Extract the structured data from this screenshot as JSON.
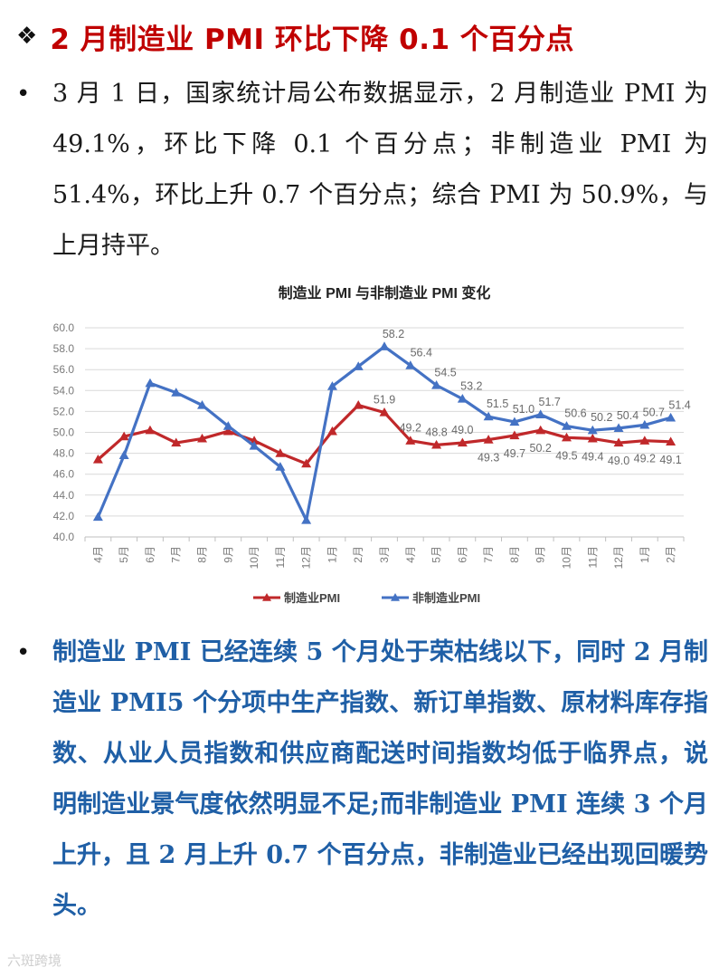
{
  "header": {
    "bullet_symbol": "❖",
    "title": "2 月制造业 PMI 环比下降 0.1 个百分点"
  },
  "paragraph1": {
    "bullet": "•",
    "text": "3 月 1 日，国家统计局公布数据显示，2 月制造业 PMI 为 49.1%，环比下降 0.1 个百分点；非制造业 PMI 为 51.4%，环比上升 0.7 个百分点；综合 PMI 为 50.9%，与上月持平。"
  },
  "paragraph2": {
    "bullet": "•",
    "text": "制造业 PMI 已经连续 5 个月处于荣枯线以下，同时 2 月制造业 PMI5 个分项中生产指数、新订单指数、原材料库存指数、从业人员指数和供应商配送时间指数均低于临界点，说明制造业景气度依然明显不足;而非制造业 PMI 连续 3 个月上升，且 2 月上升 0.7 个百分点，非制造业已经出现回暖势头。"
  },
  "watermark": "六斑跨境",
  "chart_data": {
    "type": "line",
    "title": "制造业 PMI 与非制造业 PMI 变化",
    "categories": [
      "4月",
      "5月",
      "6月",
      "7月",
      "8月",
      "9月",
      "10月",
      "11月",
      "12月",
      "1月",
      "2月",
      "3月",
      "4月",
      "5月",
      "6月",
      "7月",
      "8月",
      "9月",
      "10月",
      "11月",
      "12月",
      "1月",
      "2月"
    ],
    "ylim": [
      40.0,
      60.0
    ],
    "yticks": [
      "40.0",
      "42.0",
      "44.0",
      "46.0",
      "48.0",
      "50.0",
      "52.0",
      "54.0",
      "56.0",
      "58.0",
      "60.0"
    ],
    "grid": true,
    "legend_position": "bottom",
    "series": [
      {
        "name": "制造业PMI",
        "color": "#c0282a",
        "values": [
          47.4,
          49.6,
          50.2,
          49.0,
          49.4,
          50.1,
          49.2,
          48.0,
          47.0,
          50.1,
          52.6,
          51.9,
          49.2,
          48.8,
          49.0,
          49.3,
          49.7,
          50.2,
          49.5,
          49.4,
          49.0,
          49.2,
          49.1
        ],
        "labels": [
          "",
          "",
          "",
          "",
          "",
          "",
          "",
          "",
          "",
          "",
          "",
          "51.9",
          "49.2",
          "48.8",
          "49.0",
          "49.3",
          "49.7",
          "50.2",
          "49.5",
          "49.4",
          "49.0",
          "49.2",
          "49.1"
        ]
      },
      {
        "name": "非制造业PMI",
        "color": "#4472c4",
        "values": [
          41.9,
          47.8,
          54.7,
          53.8,
          52.6,
          50.6,
          48.7,
          46.7,
          41.6,
          54.4,
          56.3,
          58.2,
          56.4,
          54.5,
          53.2,
          51.5,
          51.0,
          51.7,
          50.6,
          50.2,
          50.4,
          50.7,
          51.4
        ],
        "labels": [
          "",
          "",
          "",
          "",
          "",
          "",
          "",
          "",
          "",
          "",
          "",
          "58.2",
          "56.4",
          "54.5",
          "53.2",
          "51.5",
          "51.0",
          "51.7",
          "50.6",
          "50.2",
          "50.4",
          "50.7",
          "51.4"
        ]
      }
    ]
  }
}
